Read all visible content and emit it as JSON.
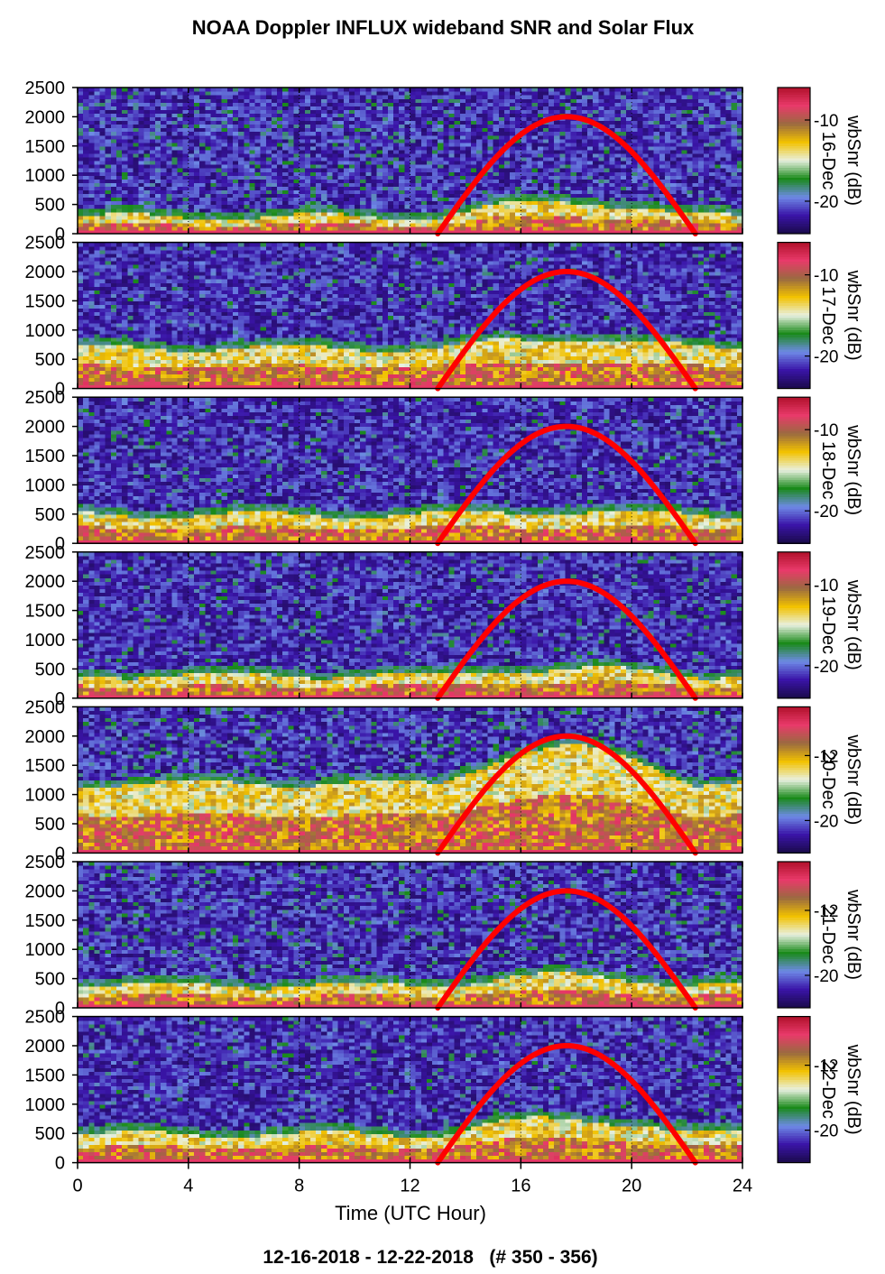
{
  "chart_data": {
    "type": "heatmap",
    "title": "NOAA Doppler INFLUX wideband SNR and Solar Flux",
    "xlabel": "Time (UTC Hour)",
    "footer": "12-16-2018 - 12-22-2018   (# 350 - 356)",
    "xlim": [
      0,
      24
    ],
    "x_ticks": [
      0,
      4,
      8,
      12,
      16,
      20,
      24
    ],
    "ylim": [
      0,
      2500
    ],
    "y_ticks": [
      0,
      500,
      1000,
      1500,
      2000,
      2500
    ],
    "colorbar_label": "wbSnr (dB)",
    "colorscale": [
      "#1a0a4a",
      "#3a14a8",
      "#6e8ae6",
      "#1a8a1a",
      "#e8f0e0",
      "#f2c200",
      "#9a6a40",
      "#e83a6a",
      "#b0102a"
    ],
    "solar_flux_color": "#ff0000",
    "solar_flux": {
      "sunrise_hour": 13.0,
      "peak_hour": 17.6,
      "sunset_hour": 22.3,
      "peak_value": 2000
    },
    "days": [
      {
        "label": "16-Dec",
        "cb_ticks": [
          "-10",
          "-20"
        ],
        "cb_range": [
          -24,
          -6
        ],
        "layer_top": 300,
        "daytime_boost": 250,
        "noise_level": 0.15
      },
      {
        "label": "17-Dec",
        "cb_ticks": [
          "-10",
          "-20"
        ],
        "cb_range": [
          -24,
          -6
        ],
        "layer_top": 700,
        "daytime_boost": 150,
        "noise_level": 0.1
      },
      {
        "label": "18-Dec",
        "cb_ticks": [
          "-10",
          "-20"
        ],
        "cb_range": [
          -24,
          -6
        ],
        "layer_top": 500,
        "daytime_boost": 50,
        "noise_level": 0.1
      },
      {
        "label": "19-Dec",
        "cb_ticks": [
          "-10",
          "-20"
        ],
        "cb_range": [
          -24,
          -6
        ],
        "layer_top": 400,
        "daytime_boost": 100,
        "noise_level": 0.1
      },
      {
        "label": "20-Dec",
        "cb_ticks": [
          "-12",
          "-20"
        ],
        "cb_range": [
          -24,
          -6
        ],
        "layer_top": 1200,
        "daytime_boost": 600,
        "noise_level": 0.2
      },
      {
        "label": "21-Dec",
        "cb_ticks": [
          "-12",
          "-20"
        ],
        "cb_range": [
          -24,
          -6
        ],
        "layer_top": 400,
        "daytime_boost": 150,
        "noise_level": 0.15
      },
      {
        "label": "22-Dec",
        "cb_ticks": [
          "-12",
          "-20"
        ],
        "cb_range": [
          -24,
          -6
        ],
        "layer_top": 500,
        "daytime_boost": 250,
        "noise_level": 0.1
      }
    ]
  }
}
